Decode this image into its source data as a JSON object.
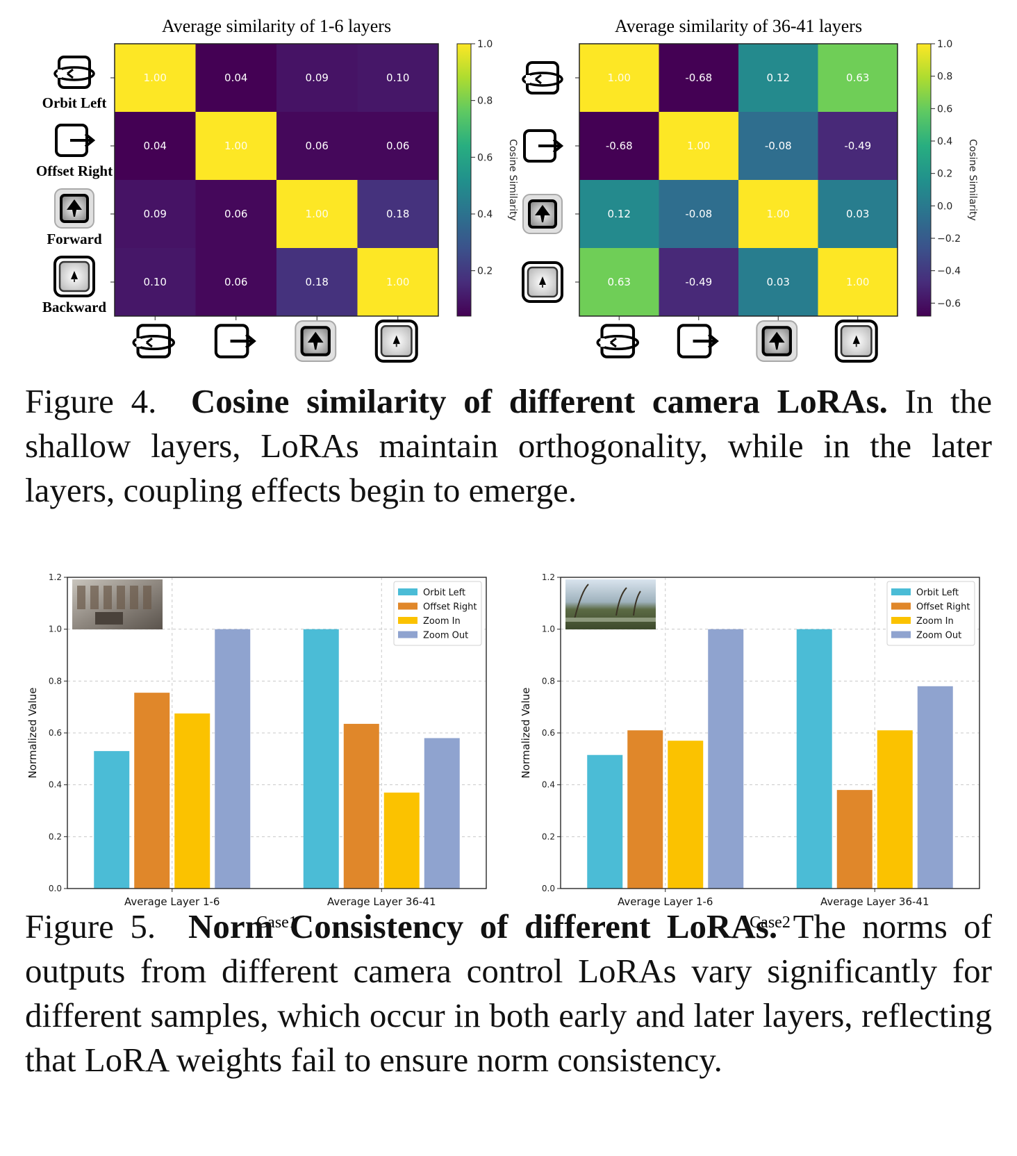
{
  "figure4": {
    "caption_prefix": "Figure 4.",
    "caption_bold": "Cosine similarity of different camera LoRAs.",
    "caption_rest": "In the shallow layers, LoRAs maintain orthogonality, while in the later layers, coupling effects begin to emerge."
  },
  "figure5": {
    "caption_prefix": "Figure 5.",
    "caption_bold": "Norm Consistency of different LoRAs.",
    "caption_rest": "The norms of outputs from different camera control LoRAs vary significantly for different samples, which occur in both early and later layers, reflecting that LoRA weights fail to ensure norm consistency."
  },
  "row_labels": [
    "Orbit Left",
    "Offset Right",
    "Forward",
    "Backward"
  ],
  "icons": [
    "orbit-left-icon",
    "offset-right-icon",
    "forward-icon",
    "backward-icon"
  ],
  "colors": {
    "orbit_left": "#4bbcd6",
    "offset_right": "#e0872a",
    "zoom_in": "#fbc200",
    "zoom_out": "#8fa3cf"
  },
  "chart_data": [
    {
      "type": "heatmap",
      "title": "Average similarity of 1-6 layers",
      "colorbar_label": "Cosine Similarity",
      "colorbar_ticks": [
        "1.0",
        "0.8",
        "0.6",
        "0.4",
        "0.2"
      ],
      "colorbar_range": [
        0.04,
        1.0
      ],
      "cells": [
        [
          "1.00",
          "0.04",
          "0.09",
          "0.10"
        ],
        [
          "0.04",
          "1.00",
          "0.06",
          "0.06"
        ],
        [
          "0.09",
          "0.06",
          "1.00",
          "0.18"
        ],
        [
          "0.10",
          "0.06",
          "0.18",
          "1.00"
        ]
      ]
    },
    {
      "type": "heatmap",
      "title": "Average similarity of 36-41 layers",
      "colorbar_label": "Cosine Similarity",
      "colorbar_ticks": [
        "1.0",
        "0.8",
        "0.6",
        "0.4",
        "0.2",
        "0.0",
        "−0.2",
        "−0.4",
        "−0.6"
      ],
      "colorbar_range": [
        -0.68,
        1.0
      ],
      "cells": [
        [
          "1.00",
          "-0.68",
          "0.12",
          "0.63"
        ],
        [
          "-0.68",
          "1.00",
          "-0.08",
          "-0.49"
        ],
        [
          "0.12",
          "-0.08",
          "1.00",
          "0.03"
        ],
        [
          "0.63",
          "-0.49",
          "0.03",
          "1.00"
        ]
      ]
    },
    {
      "type": "bar",
      "case_label": "Case1",
      "ylabel": "Normalized Value",
      "ylim": [
        0,
        1.2
      ],
      "yticks": [
        "0.0",
        "0.2",
        "0.4",
        "0.6",
        "0.8",
        "1.0",
        "1.2"
      ],
      "categories": [
        "Average Layer 1-6",
        "Average Layer 36-41"
      ],
      "series": [
        {
          "name": "Orbit Left",
          "values": [
            0.53,
            1.0
          ]
        },
        {
          "name": "Offset Right",
          "values": [
            0.755,
            0.635
          ]
        },
        {
          "name": "Zoom In",
          "values": [
            0.675,
            0.37
          ]
        },
        {
          "name": "Zoom Out",
          "values": [
            1.0,
            0.58
          ]
        }
      ],
      "grid": true,
      "legend": "top-right"
    },
    {
      "type": "bar",
      "case_label": "Case2",
      "ylabel": "Normalized Value",
      "ylim": [
        0,
        1.2
      ],
      "yticks": [
        "0.0",
        "0.2",
        "0.4",
        "0.6",
        "0.8",
        "1.0",
        "1.2"
      ],
      "categories": [
        "Average Layer 1-6",
        "Average Layer 36-41"
      ],
      "series": [
        {
          "name": "Orbit Left",
          "values": [
            0.515,
            1.0
          ]
        },
        {
          "name": "Offset Right",
          "values": [
            0.61,
            0.38
          ]
        },
        {
          "name": "Zoom In",
          "values": [
            0.57,
            0.61
          ]
        },
        {
          "name": "Zoom Out",
          "values": [
            1.0,
            0.78
          ]
        }
      ],
      "grid": true,
      "legend": "top-right"
    }
  ]
}
